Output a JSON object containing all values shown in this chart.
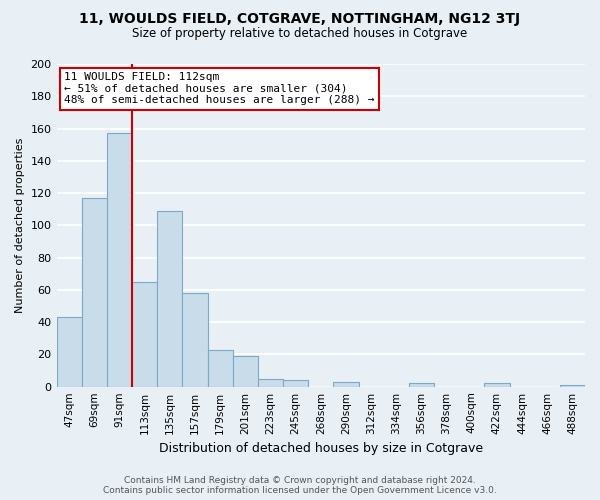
{
  "title": "11, WOULDS FIELD, COTGRAVE, NOTTINGHAM, NG12 3TJ",
  "subtitle": "Size of property relative to detached houses in Cotgrave",
  "xlabel": "Distribution of detached houses by size in Cotgrave",
  "ylabel": "Number of detached properties",
  "bar_color": "#c8dcea",
  "bar_edge_color": "#7aaac8",
  "categories": [
    "47sqm",
    "69sqm",
    "91sqm",
    "113sqm",
    "135sqm",
    "157sqm",
    "179sqm",
    "201sqm",
    "223sqm",
    "245sqm",
    "268sqm",
    "290sqm",
    "312sqm",
    "334sqm",
    "356sqm",
    "378sqm",
    "400sqm",
    "422sqm",
    "444sqm",
    "466sqm",
    "488sqm"
  ],
  "values": [
    43,
    117,
    157,
    65,
    109,
    58,
    23,
    19,
    5,
    4,
    0,
    3,
    0,
    0,
    2,
    0,
    0,
    2,
    0,
    0,
    1
  ],
  "ylim": [
    0,
    200
  ],
  "yticks": [
    0,
    20,
    40,
    60,
    80,
    100,
    120,
    140,
    160,
    180,
    200
  ],
  "property_line_color": "#cc0000",
  "annotation_line1": "11 WOULDS FIELD: 112sqm",
  "annotation_line2": "← 51% of detached houses are smaller (304)",
  "annotation_line3": "48% of semi-detached houses are larger (288) →",
  "annotation_box_color": "#ffffff",
  "annotation_box_edge": "#cc0000",
  "footer_line1": "Contains HM Land Registry data © Crown copyright and database right 2024.",
  "footer_line2": "Contains public sector information licensed under the Open Government Licence v3.0.",
  "background_color": "#e8eff5",
  "grid_color": "#ffffff"
}
